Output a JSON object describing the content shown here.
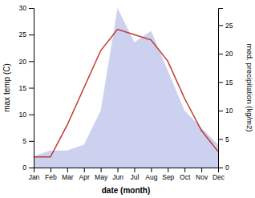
{
  "chart_data": {
    "type": "line",
    "categories": [
      "Jan",
      "Feb",
      "Mar",
      "Apr",
      "May",
      "Jun",
      "Jul",
      "Aug",
      "Sep",
      "Oct",
      "Nov",
      "Dec"
    ],
    "series": [
      {
        "type": "area",
        "axis": "y2",
        "color": "#b0b8e8",
        "values": [
          2,
          3,
          3,
          4,
          10,
          28,
          22,
          24,
          17,
          10,
          7,
          4
        ]
      },
      {
        "type": "line",
        "color": "#c0392b",
        "values": [
          2,
          2,
          8,
          15,
          22,
          26,
          25,
          24,
          20,
          13,
          7,
          3
        ]
      }
    ],
    "x_label": "date (month)",
    "y_label": "max temp (C)",
    "y2_label": "med. precipitation (kg/m2)",
    "ylim": [
      0,
      30
    ],
    "yticks": [
      0,
      5,
      10,
      15,
      20,
      25,
      30
    ],
    "y2lim": [
      0,
      28
    ],
    "y2ticks": [
      0,
      5,
      10,
      15,
      20,
      25
    ]
  }
}
